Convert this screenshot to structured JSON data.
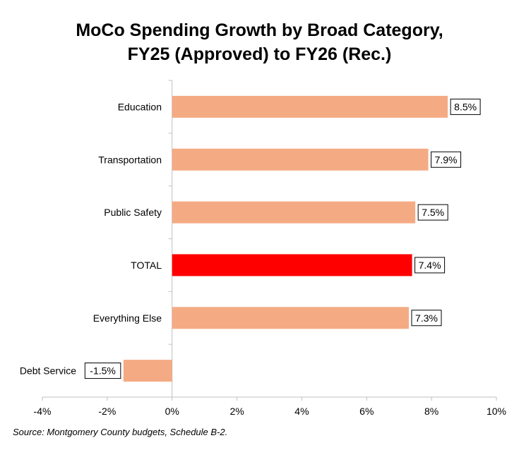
{
  "chart_data": {
    "type": "bar",
    "orientation": "horizontal",
    "title_lines": [
      "MoCo Spending Growth by Broad Category,",
      "FY25 (Approved) to FY26 (Rec.)"
    ],
    "categories": [
      "Education",
      "Transportation",
      "Public Safety",
      "TOTAL",
      "Everything Else",
      "Debt Service"
    ],
    "values": [
      8.5,
      7.9,
      7.5,
      7.4,
      7.3,
      -1.5
    ],
    "data_labels": [
      "8.5%",
      "7.9%",
      "7.5%",
      "7.4%",
      "7.3%",
      "-1.5%"
    ],
    "xlim": [
      -4,
      10
    ],
    "xticks": [
      -4,
      -2,
      0,
      2,
      4,
      6,
      8,
      10
    ],
    "xtick_labels": [
      "-4%",
      "-2%",
      "0%",
      "2%",
      "4%",
      "6%",
      "8%",
      "10%"
    ],
    "grid": false,
    "legend": "none",
    "colors": {
      "default": "#F4AB84",
      "highlight": "#FF0000",
      "highlight_category": "TOTAL"
    }
  },
  "source_note": "Source: Montgomery County budgets, Schedule B-2."
}
